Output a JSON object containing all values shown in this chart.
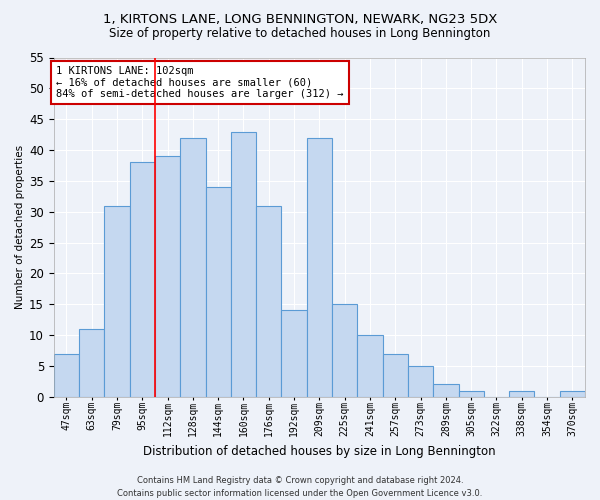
{
  "title": "1, KIRTONS LANE, LONG BENNINGTON, NEWARK, NG23 5DX",
  "subtitle": "Size of property relative to detached houses in Long Bennington",
  "xlabel": "Distribution of detached houses by size in Long Bennington",
  "ylabel": "Number of detached properties",
  "categories": [
    "47sqm",
    "63sqm",
    "79sqm",
    "95sqm",
    "112sqm",
    "128sqm",
    "144sqm",
    "160sqm",
    "176sqm",
    "192sqm",
    "209sqm",
    "225sqm",
    "241sqm",
    "257sqm",
    "273sqm",
    "289sqm",
    "305sqm",
    "322sqm",
    "338sqm",
    "354sqm",
    "370sqm"
  ],
  "values": [
    7,
    11,
    31,
    38,
    39,
    42,
    34,
    43,
    31,
    14,
    42,
    15,
    10,
    7,
    5,
    2,
    1,
    0,
    1,
    0,
    1
  ],
  "bar_color": "#c5d8f0",
  "bar_edge_color": "#5b9bd5",
  "ylim": [
    0,
    55
  ],
  "yticks": [
    0,
    5,
    10,
    15,
    20,
    25,
    30,
    35,
    40,
    45,
    50,
    55
  ],
  "red_line_x": 3.5,
  "annotation_text": "1 KIRTONS LANE: 102sqm\n← 16% of detached houses are smaller (60)\n84% of semi-detached houses are larger (312) →",
  "annotation_box_color": "#ffffff",
  "annotation_box_edge": "#cc0000",
  "footer_line1": "Contains HM Land Registry data © Crown copyright and database right 2024.",
  "footer_line2": "Contains public sector information licensed under the Open Government Licence v3.0.",
  "background_color": "#eef2f9",
  "plot_background": "#eef2f9"
}
